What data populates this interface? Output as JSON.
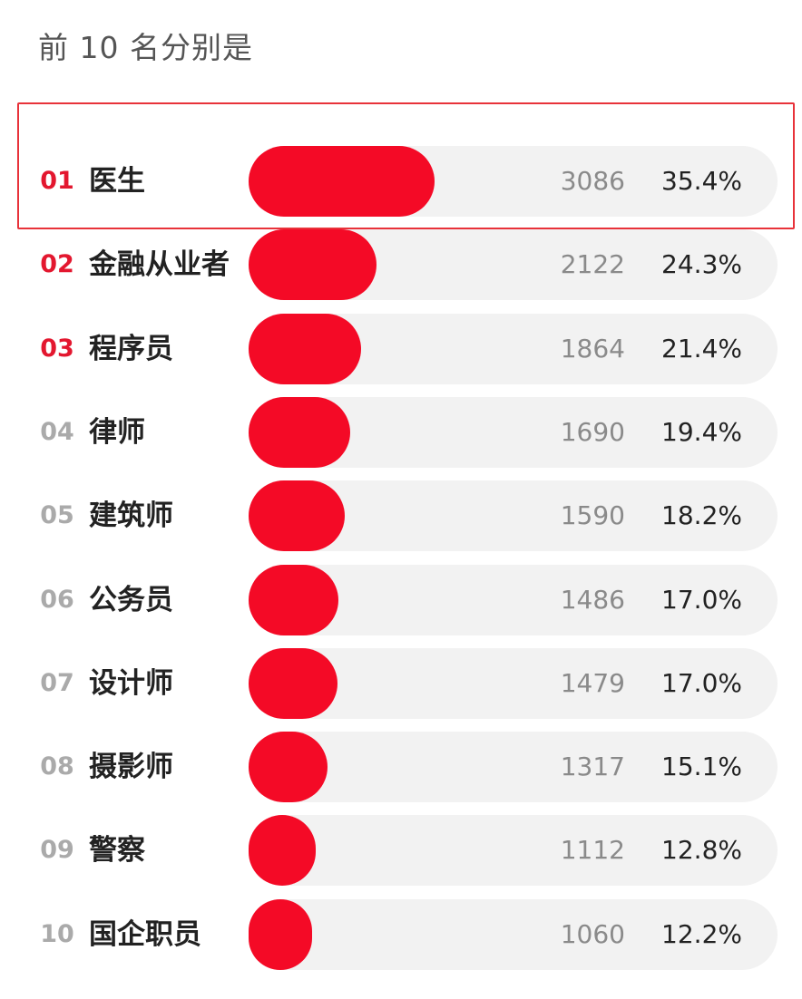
{
  "title": "前 10 名分别是",
  "colors": {
    "bar": "#f40a26",
    "track": "#f2f2f2",
    "rank_top": "#e3172f",
    "rank_other": "#aaaaaa",
    "highlight_border": "#e8323a"
  },
  "highlighted_rank": "01",
  "chart_data": {
    "type": "bar",
    "orientation": "horizontal",
    "title": "前 10 名分别是",
    "ranks": [
      "01",
      "02",
      "03",
      "04",
      "05",
      "06",
      "07",
      "08",
      "09",
      "10"
    ],
    "categories": [
      "医生",
      "金融从业者",
      "程序员",
      "律师",
      "建筑师",
      "公务员",
      "设计师",
      "摄影师",
      "警察",
      "国企职员"
    ],
    "values": [
      3086,
      2122,
      1864,
      1690,
      1590,
      1486,
      1479,
      1317,
      1112,
      1060
    ],
    "percentages": [
      "35.4%",
      "24.3%",
      "21.4%",
      "19.4%",
      "18.2%",
      "17.0%",
      "17.0%",
      "15.1%",
      "12.8%",
      "12.2%"
    ],
    "top_ranks_highlighted": 3
  }
}
